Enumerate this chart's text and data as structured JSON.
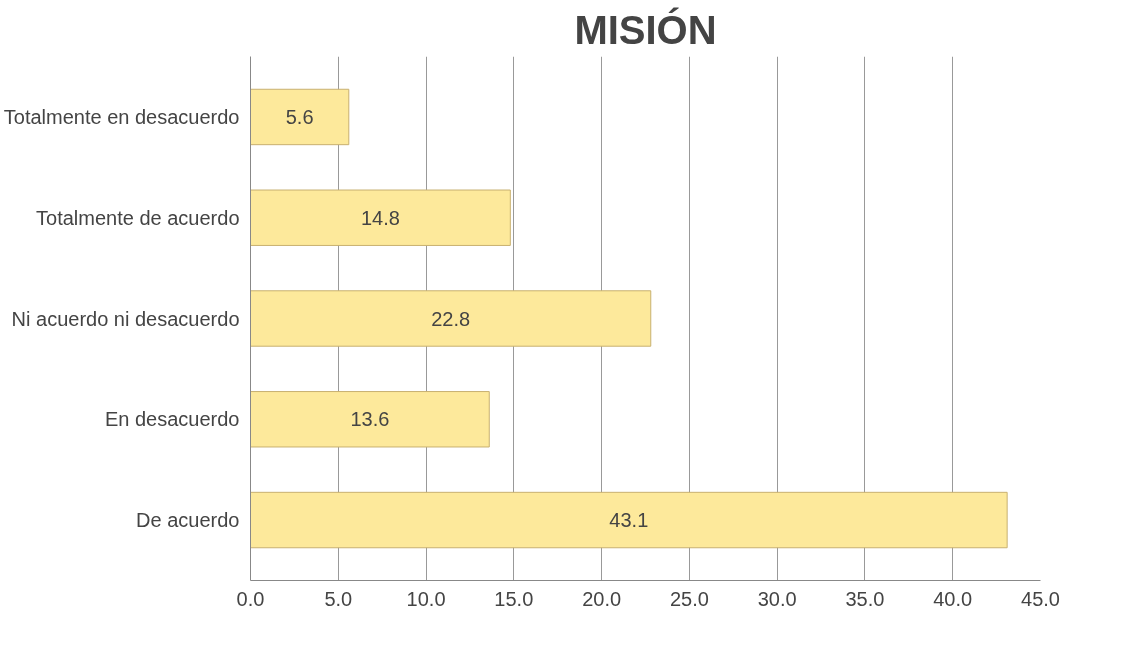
{
  "chart_data": {
    "type": "bar",
    "orientation": "horizontal",
    "title": "MISIÓN",
    "categories": [
      "Totalmente en desacuerdo",
      "Totalmente de acuerdo",
      "Ni acuerdo ni desacuerdo",
      "En desacuerdo",
      "De acuerdo"
    ],
    "values": [
      5.6,
      14.8,
      22.8,
      13.6,
      43.1
    ],
    "color": "#fde99b",
    "xlim": [
      0,
      45
    ],
    "xticks": [
      {
        "value": 0,
        "label": "0.0"
      },
      {
        "value": 5,
        "label": "5.0"
      },
      {
        "value": 10,
        "label": "10.0"
      },
      {
        "value": 15,
        "label": "15.0"
      },
      {
        "value": 20,
        "label": "20.0"
      },
      {
        "value": 25,
        "label": "25.0"
      },
      {
        "value": 30,
        "label": "30.0"
      },
      {
        "value": 35,
        "label": "35.0"
      },
      {
        "value": 40,
        "label": "40.0"
      },
      {
        "value": 45,
        "label": "45.0"
      }
    ],
    "grid": "x",
    "data_labels": true
  }
}
